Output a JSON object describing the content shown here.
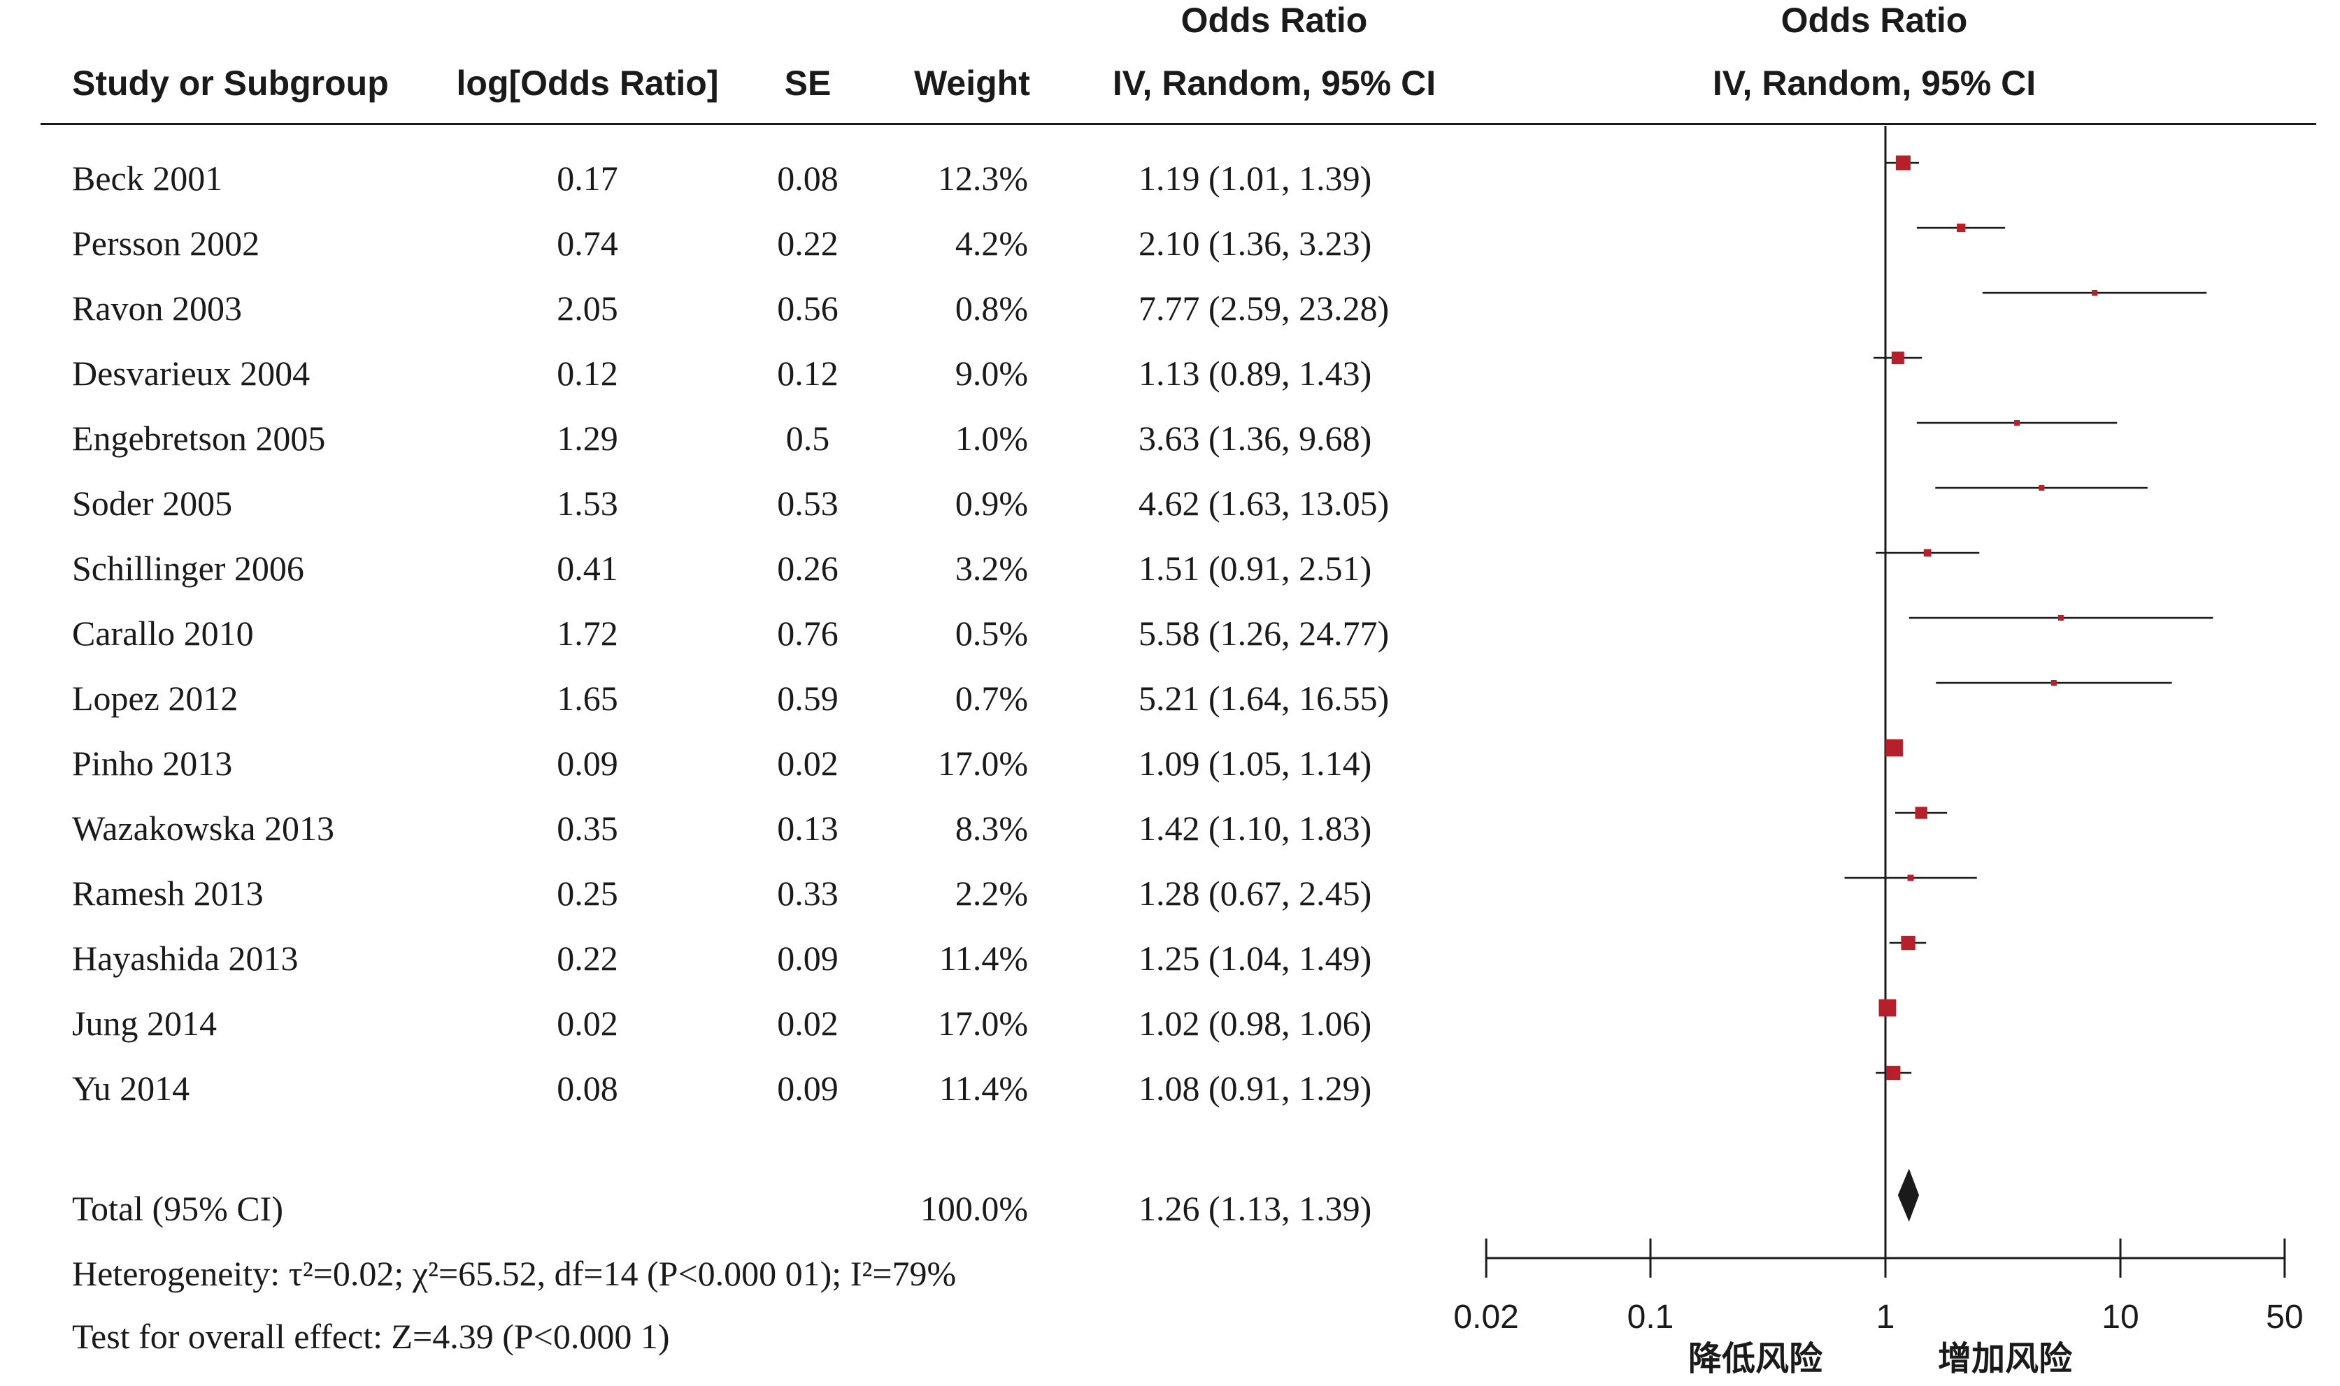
{
  "headers": {
    "study": "Study or Subgroup",
    "log_or": "log[Odds Ratio]",
    "se": "SE",
    "weight": "Weight",
    "or_title": "Odds Ratio",
    "or_method": "IV, Random, 95% CI",
    "plot_title": "Odds Ratio",
    "plot_method": "IV, Random, 95% CI"
  },
  "total": {
    "label": "Total (95% CI)",
    "weight": "100.0%",
    "ci_text": "1.26 (1.13, 1.39)"
  },
  "heterogeneity": "Heterogeneity: τ²=0.02; χ²=65.52, df=14 (P<0.000 01); I²=79%",
  "overall_effect": "Test for overall effect: Z=4.39 (P<0.000 1)",
  "chart_data": {
    "type": "forest",
    "x_scale": "log",
    "xlim": [
      0.02,
      50
    ],
    "x_ticks": [
      0.02,
      0.1,
      1,
      10,
      50
    ],
    "x_tick_labels": [
      "0.02",
      "0.1",
      "1",
      "10",
      "50"
    ],
    "reference_line": 1,
    "axis_label_left": "降低风险",
    "axis_label_right": "增加风险",
    "marker_color": "#b5202a",
    "line_color": "#1a1a1a",
    "studies": [
      {
        "name": "Beck 2001",
        "log_or": "0.17",
        "se": "0.08",
        "weight_text": "12.3%",
        "weight": 12.3,
        "or": 1.19,
        "lo": 1.01,
        "hi": 1.39,
        "ci_text": "1.19 (1.01, 1.39)"
      },
      {
        "name": "Persson 2002",
        "log_or": "0.74",
        "se": "0.22",
        "weight_text": "4.2%",
        "weight": 4.2,
        "or": 2.1,
        "lo": 1.36,
        "hi": 3.23,
        "ci_text": "2.10 (1.36, 3.23)"
      },
      {
        "name": "Ravon 2003",
        "log_or": "2.05",
        "se": "0.56",
        "weight_text": "0.8%",
        "weight": 0.8,
        "or": 7.77,
        "lo": 2.59,
        "hi": 23.28,
        "ci_text": "7.77 (2.59, 23.28)"
      },
      {
        "name": "Desvarieux 2004",
        "log_or": "0.12",
        "se": "0.12",
        "weight_text": "9.0%",
        "weight": 9.0,
        "or": 1.13,
        "lo": 0.89,
        "hi": 1.43,
        "ci_text": "1.13 (0.89, 1.43)"
      },
      {
        "name": "Engebretson 2005",
        "log_or": "1.29",
        "se": "0.5",
        "weight_text": "1.0%",
        "weight": 1.0,
        "or": 3.63,
        "lo": 1.36,
        "hi": 9.68,
        "ci_text": "3.63 (1.36, 9.68)"
      },
      {
        "name": "Soder 2005",
        "log_or": "1.53",
        "se": "0.53",
        "weight_text": "0.9%",
        "weight": 0.9,
        "or": 4.62,
        "lo": 1.63,
        "hi": 13.05,
        "ci_text": "4.62 (1.63, 13.05)"
      },
      {
        "name": "Schillinger 2006",
        "log_or": "0.41",
        "se": "0.26",
        "weight_text": "3.2%",
        "weight": 3.2,
        "or": 1.51,
        "lo": 0.91,
        "hi": 2.51,
        "ci_text": "1.51 (0.91, 2.51)"
      },
      {
        "name": "Carallo 2010",
        "log_or": "1.72",
        "se": "0.76",
        "weight_text": "0.5%",
        "weight": 0.5,
        "or": 5.58,
        "lo": 1.26,
        "hi": 24.77,
        "ci_text": "5.58 (1.26, 24.77)"
      },
      {
        "name": "Lopez 2012",
        "log_or": "1.65",
        "se": "0.59",
        "weight_text": "0.7%",
        "weight": 0.7,
        "or": 5.21,
        "lo": 1.64,
        "hi": 16.55,
        "ci_text": "5.21 (1.64, 16.55)"
      },
      {
        "name": "Pinho 2013",
        "log_or": "0.09",
        "se": "0.02",
        "weight_text": "17.0%",
        "weight": 17.0,
        "or": 1.09,
        "lo": 1.05,
        "hi": 1.14,
        "ci_text": "1.09 (1.05, 1.14)"
      },
      {
        "name": "Wazakowska 2013",
        "log_or": "0.35",
        "se": "0.13",
        "weight_text": "8.3%",
        "weight": 8.3,
        "or": 1.42,
        "lo": 1.1,
        "hi": 1.83,
        "ci_text": "1.42 (1.10, 1.83)"
      },
      {
        "name": "Ramesh 2013",
        "log_or": "0.25",
        "se": "0.33",
        "weight_text": "2.2%",
        "weight": 2.2,
        "or": 1.28,
        "lo": 0.67,
        "hi": 2.45,
        "ci_text": "1.28 (0.67, 2.45)"
      },
      {
        "name": "Hayashida 2013",
        "log_or": "0.22",
        "se": "0.09",
        "weight_text": "11.4%",
        "weight": 11.4,
        "or": 1.25,
        "lo": 1.04,
        "hi": 1.49,
        "ci_text": "1.25 (1.04, 1.49)"
      },
      {
        "name": "Jung 2014",
        "log_or": "0.02",
        "se": "0.02",
        "weight_text": "17.0%",
        "weight": 17.0,
        "or": 1.02,
        "lo": 0.98,
        "hi": 1.06,
        "ci_text": "1.02 (0.98, 1.06)"
      },
      {
        "name": "Yu 2014",
        "log_or": "0.08",
        "se": "0.09",
        "weight_text": "11.4%",
        "weight": 11.4,
        "or": 1.08,
        "lo": 0.91,
        "hi": 1.29,
        "ci_text": "1.08 (0.91, 1.29)"
      }
    ],
    "pooled": {
      "or": 1.26,
      "lo": 1.13,
      "hi": 1.39
    }
  }
}
